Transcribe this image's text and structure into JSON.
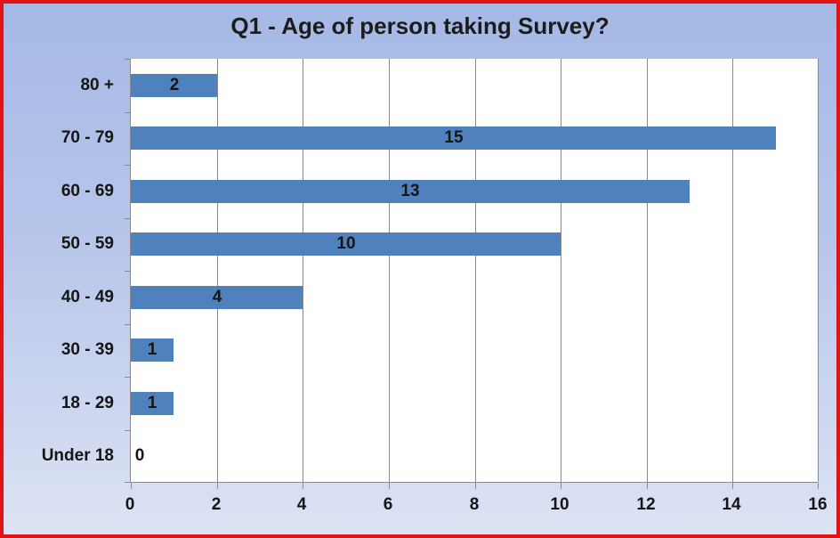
{
  "chart_data": {
    "type": "bar",
    "orientation": "horizontal",
    "title": "Q1 - Age of person taking Survey?",
    "categories": [
      "80 +",
      "70 - 79",
      "60 - 69",
      "50 - 59",
      "40 - 49",
      "30 - 39",
      "18 - 29",
      "Under 18"
    ],
    "values": [
      2,
      15,
      13,
      10,
      4,
      1,
      1,
      0
    ],
    "data_labels": [
      "2",
      "15",
      "13",
      "10",
      "4",
      "1",
      "1",
      "0"
    ],
    "xlabel": "",
    "ylabel": "",
    "xlim": [
      0,
      16
    ],
    "x_ticks": [
      "0",
      "2",
      "4",
      "6",
      "8",
      "10",
      "12",
      "14",
      "16"
    ],
    "grid": "vertical-gridlines",
    "legend": "none",
    "series_name": "",
    "data_label_position": "center"
  },
  "style": {
    "bar_color": "#4f81bd",
    "grid_color": "#8a8a8a",
    "axis_color": "#8a8a8a",
    "plot_background": "#ffffff",
    "frame_border_color": "#e01414",
    "background_top": "#a5b9e6",
    "background_bottom": "#dde3f4",
    "text_color": "#151515"
  }
}
